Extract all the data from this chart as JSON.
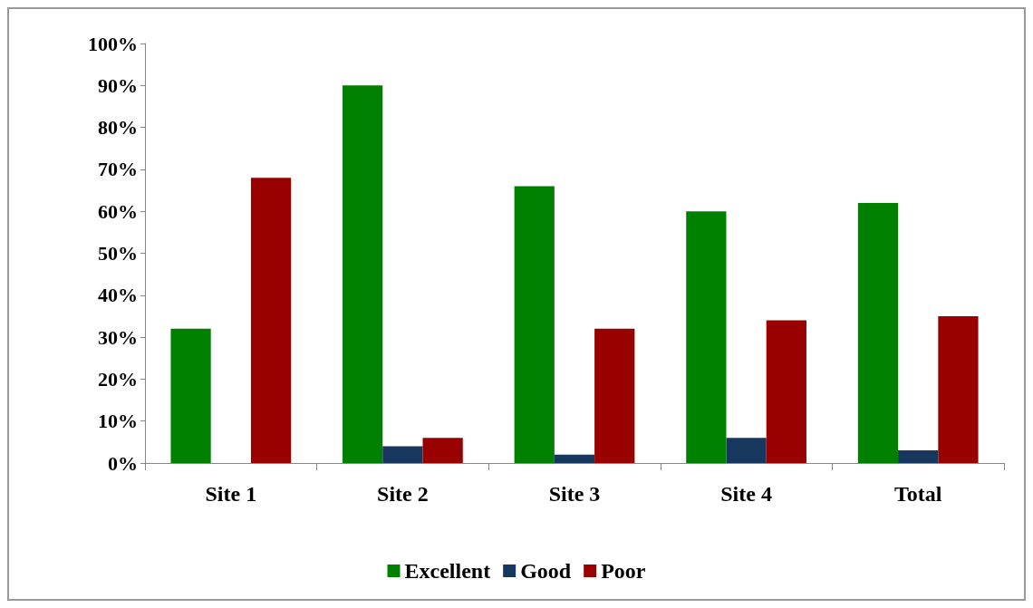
{
  "chart_data": {
    "type": "bar",
    "categories": [
      "Site 1",
      "Site 2",
      "Site 3",
      "Site 4",
      "Total"
    ],
    "series": [
      {
        "name": "Excellent",
        "color": "#008000",
        "values": [
          32,
          90,
          66,
          60,
          62
        ]
      },
      {
        "name": "Good",
        "color": "#17375e",
        "values": [
          0,
          4,
          2,
          6,
          3
        ]
      },
      {
        "name": "Poor",
        "color": "#990000",
        "values": [
          68,
          6,
          32,
          34,
          35
        ]
      }
    ],
    "ylim": [
      0,
      100
    ],
    "yticks": [
      {
        "value": 0,
        "label": "0%"
      },
      {
        "value": 10,
        "label": "10%"
      },
      {
        "value": 20,
        "label": "20%"
      },
      {
        "value": 30,
        "label": "30%"
      },
      {
        "value": 40,
        "label": "40%"
      },
      {
        "value": 50,
        "label": "50%"
      },
      {
        "value": 60,
        "label": "60%"
      },
      {
        "value": 70,
        "label": "70%"
      },
      {
        "value": 80,
        "label": "80%"
      },
      {
        "value": 90,
        "label": "90%"
      },
      {
        "value": 100,
        "label": "100%"
      }
    ],
    "grid": false,
    "legend": "bottom"
  }
}
